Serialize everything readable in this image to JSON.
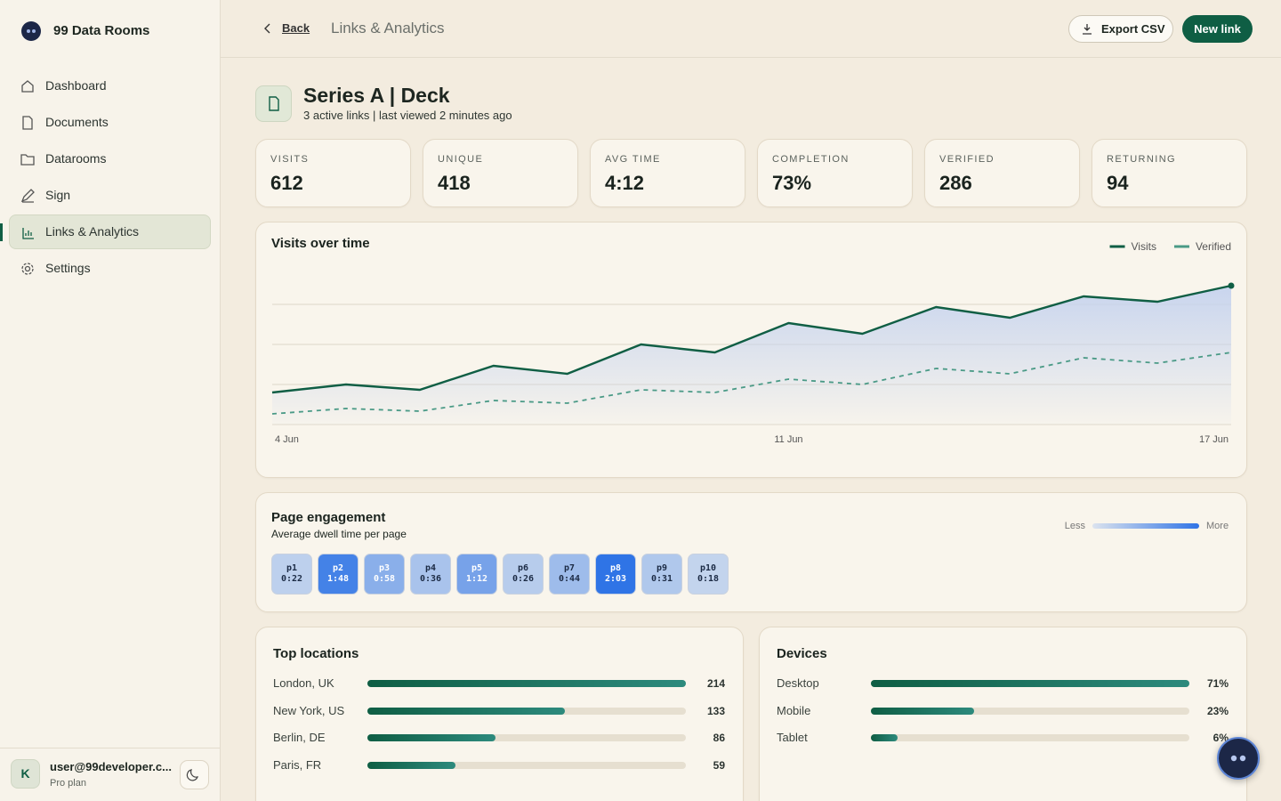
{
  "sidebar": {
    "brand": "99 Data Rooms",
    "nav": [
      "Dashboard",
      "Documents",
      "Datarooms",
      "Sign",
      "Links & Analytics",
      "Settings"
    ],
    "user": {
      "avatar": "K",
      "email": "user@99developer.c...",
      "plan": "Pro plan"
    }
  },
  "header": {
    "back": "Back",
    "title": "Links & Analytics",
    "export": "Export CSV",
    "new_link": "New link"
  },
  "document": {
    "title": "Series A | Deck",
    "subtitle": "3 active links | last viewed 2 minutes ago"
  },
  "stats": [
    {
      "label": "VISITS",
      "value": 612
    },
    {
      "label": "UNIQUE",
      "value": 418
    },
    {
      "label": "AVG TIME",
      "value": "4:12"
    },
    {
      "label": "COMPLETION",
      "value": "73%"
    },
    {
      "label": "VERIFIED",
      "value": 286
    },
    {
      "label": "RETURNING",
      "value": 94
    }
  ],
  "chart_data": {
    "type": "line",
    "title": "Visits over time",
    "categories": [
      "4 Jun",
      null,
      null,
      null,
      null,
      null,
      null,
      "11 Jun",
      null,
      null,
      null,
      null,
      null,
      "17 Jun"
    ],
    "series": [
      {
        "name": "Visits",
        "color": "#0f5e44",
        "style": "solid",
        "area": true,
        "values": [
          12,
          15,
          13,
          22,
          19,
          30,
          27,
          38,
          34,
          44,
          40,
          48,
          46,
          52
        ]
      },
      {
        "name": "Verified",
        "color": "#4a9a86",
        "style": "dashed",
        "values": [
          4,
          6,
          5,
          9,
          8,
          13,
          12,
          17,
          15,
          21,
          19,
          25,
          23,
          27
        ]
      }
    ],
    "ylim": [
      0,
      60
    ],
    "yticks": [
      15,
      30,
      45
    ],
    "grid": true,
    "legend": "top-right"
  },
  "engagement": {
    "title": "Page engagement",
    "subtitle": "Average dwell time per page",
    "legend_less": "Less",
    "legend_more": "More",
    "pages": [
      "p1",
      "p2",
      "p3",
      "p4",
      "p5",
      "p6",
      "p7",
      "p8",
      "p9",
      "p10"
    ],
    "values": [
      22,
      108,
      58,
      36,
      72,
      26,
      44,
      123,
      31,
      18
    ],
    "value_labels": [
      "0:22",
      "1:48",
      "0:58",
      "0:36",
      "1:12",
      "0:26",
      "0:44",
      "2:03",
      "0:31",
      "0:18"
    ]
  },
  "locations": {
    "title": "Top locations",
    "categories": [
      "London, UK",
      "New York, US",
      "Berlin, DE",
      "Paris, FR"
    ],
    "values": [
      214,
      133,
      86,
      59
    ],
    "xlim": [
      0,
      214
    ]
  },
  "devices": {
    "title": "Devices",
    "categories": [
      "Desktop",
      "Mobile",
      "Tablet"
    ],
    "values": [
      71,
      23,
      6
    ],
    "value_labels": [
      "71%",
      "23%",
      "6%"
    ],
    "xlim": [
      0,
      71
    ]
  }
}
